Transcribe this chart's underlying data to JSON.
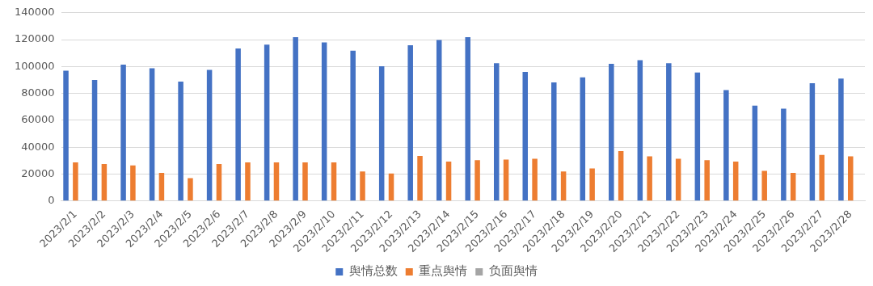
{
  "chart_data": {
    "type": "bar",
    "categories": [
      "2023/2/1",
      "2023/2/2",
      "2023/2/3",
      "2023/2/4",
      "2023/2/5",
      "2023/2/6",
      "2023/2/7",
      "2023/2/8",
      "2023/2/9",
      "2023/2/10",
      "2023/2/11",
      "2023/2/12",
      "2023/2/13",
      "2023/2/14",
      "2023/2/15",
      "2023/2/16",
      "2023/2/17",
      "2023/2/18",
      "2023/2/19",
      "2023/2/20",
      "2023/2/21",
      "2023/2/22",
      "2023/2/23",
      "2023/2/24",
      "2023/2/25",
      "2023/2/26",
      "2023/2/27",
      "2023/2/28"
    ],
    "series": [
      {
        "name": "舆情总数",
        "color": "#4472c4",
        "values": [
          97000,
          90000,
          101500,
          98700,
          88800,
          97600,
          113500,
          116300,
          121800,
          118000,
          111800,
          100300,
          115800,
          119700,
          121800,
          102500,
          96000,
          88200,
          92000,
          102000,
          104800,
          102500,
          95500,
          82500,
          71000,
          68700,
          87600,
          91000
        ]
      },
      {
        "name": "重点舆情",
        "color": "#ed7d31",
        "values": [
          28700,
          27600,
          26500,
          21000,
          17000,
          27600,
          28700,
          28700,
          28700,
          28700,
          22000,
          20500,
          33600,
          29300,
          30400,
          30900,
          31500,
          22000,
          24300,
          37200,
          33200,
          31500,
          30400,
          29300,
          22500,
          21000,
          34300,
          33200
        ]
      },
      {
        "name": "负面舆情",
        "color": "#a5a5a5",
        "values": [
          0,
          0,
          0,
          0,
          0,
          0,
          0,
          0,
          0,
          0,
          0,
          0,
          0,
          0,
          0,
          0,
          0,
          0,
          0,
          0,
          0,
          0,
          0,
          0,
          0,
          0,
          0,
          0
        ]
      }
    ],
    "ylim": [
      0,
      140000
    ],
    "yticks": [
      0,
      20000,
      40000,
      60000,
      80000,
      100000,
      120000,
      140000
    ],
    "grid": "y",
    "legend": "bottom"
  }
}
